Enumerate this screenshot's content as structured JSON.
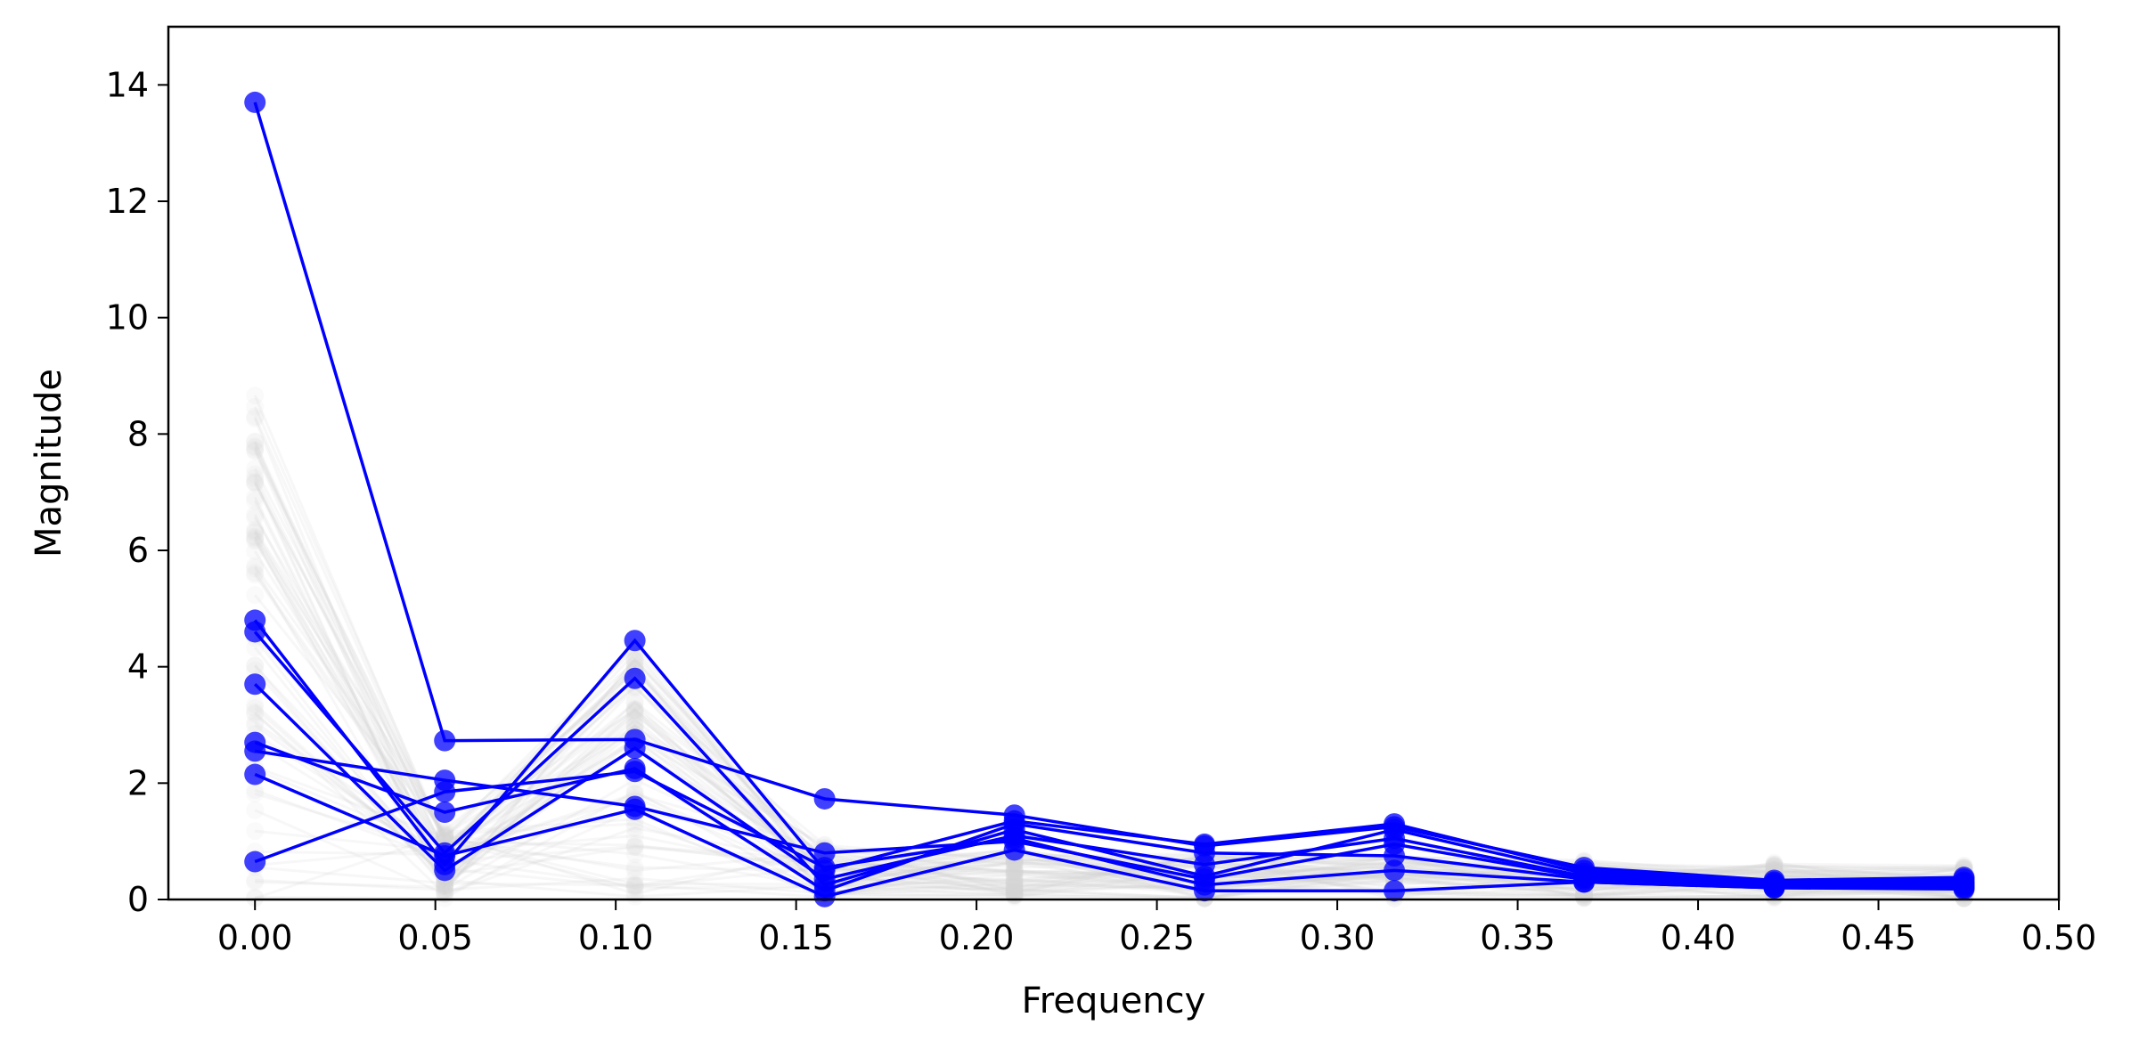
{
  "chart_data": {
    "type": "line",
    "title": "",
    "xlabel": "Frequency",
    "ylabel": "Magnitude",
    "xlim": [
      -0.024,
      0.5
    ],
    "ylim": [
      0,
      15
    ],
    "xticks": [
      "0.00",
      "0.05",
      "0.10",
      "0.15",
      "0.20",
      "0.25",
      "0.30",
      "0.35",
      "0.40",
      "0.45",
      "0.50"
    ],
    "xtick_values": [
      0.0,
      0.05,
      0.1,
      0.15,
      0.2,
      0.25,
      0.3,
      0.35,
      0.4,
      0.45,
      0.5
    ],
    "yticks": [
      "0",
      "2",
      "4",
      "6",
      "8",
      "10",
      "12",
      "14"
    ],
    "ytick_values": [
      0,
      2,
      4,
      6,
      8,
      10,
      12,
      14
    ],
    "grid": false,
    "x": [
      0.0,
      0.0526,
      0.1053,
      0.1579,
      0.2105,
      0.2632,
      0.3158,
      0.3684,
      0.4211,
      0.4737
    ],
    "highlight_color": "#0000ff",
    "background_color": "#d3d3d3",
    "series": [
      {
        "values": [
          13.7,
          2.73,
          2.75,
          1.73,
          1.45,
          0.92,
          1.25,
          0.55,
          0.33,
          0.38
        ]
      },
      {
        "values": [
          4.8,
          0.6,
          4.45,
          0.5,
          1.35,
          0.95,
          1.3,
          0.5,
          0.3,
          0.35
        ]
      },
      {
        "values": [
          4.6,
          0.8,
          3.8,
          0.25,
          1.2,
          0.4,
          1.2,
          0.45,
          0.28,
          0.3
        ]
      },
      {
        "values": [
          3.7,
          0.5,
          2.6,
          0.35,
          1.1,
          0.6,
          1.05,
          0.4,
          0.25,
          0.28
        ]
      },
      {
        "values": [
          2.7,
          1.5,
          2.25,
          0.15,
          1.3,
          0.8,
          0.75,
          0.35,
          0.25,
          0.25
        ]
      },
      {
        "values": [
          2.55,
          2.05,
          1.6,
          0.8,
          1.0,
          0.35,
          0.95,
          0.38,
          0.22,
          0.22
        ]
      },
      {
        "values": [
          2.15,
          0.75,
          1.55,
          0.05,
          0.85,
          0.15,
          0.15,
          0.3,
          0.2,
          0.2
        ]
      },
      {
        "values": [
          0.65,
          1.85,
          2.2,
          0.55,
          1.05,
          0.25,
          0.5,
          0.3,
          0.2,
          0.18
        ]
      }
    ]
  }
}
